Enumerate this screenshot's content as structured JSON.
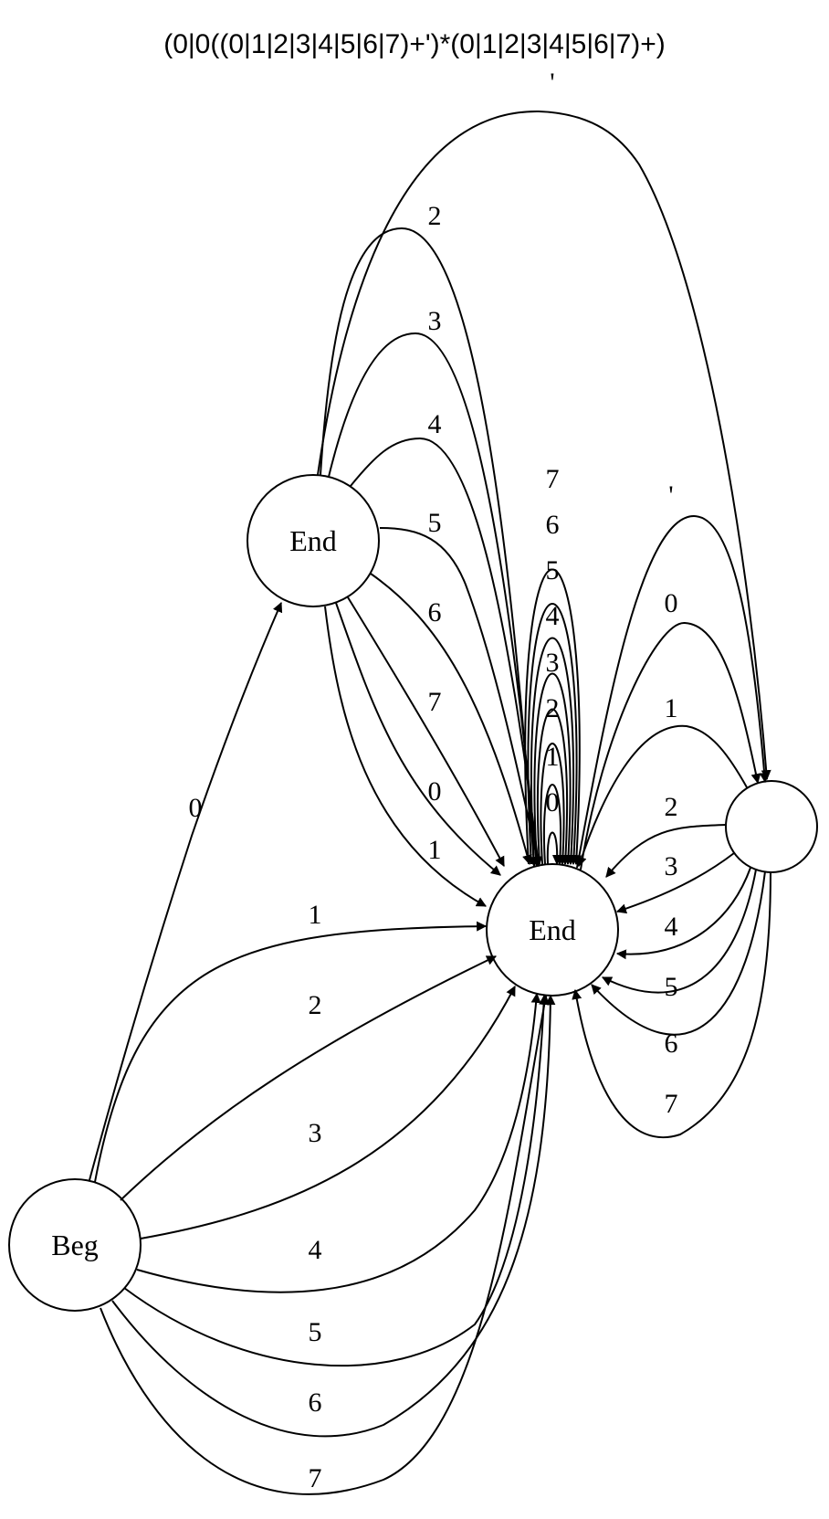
{
  "title": "(0|0((0|1|2|3|4|5|6|7)+')*(0|1|2|3|4|5|6|7)+)",
  "nodes": {
    "beg": {
      "label": "Beg"
    },
    "end1": {
      "label": "End"
    },
    "end2": {
      "label": "End"
    },
    "unnamed": {
      "label": ""
    }
  },
  "edges": [
    {
      "from": "beg",
      "to": "end1",
      "label": "0"
    },
    {
      "from": "beg",
      "to": "end2",
      "label": "1"
    },
    {
      "from": "beg",
      "to": "end2",
      "label": "2"
    },
    {
      "from": "beg",
      "to": "end2",
      "label": "3"
    },
    {
      "from": "beg",
      "to": "end2",
      "label": "4"
    },
    {
      "from": "beg",
      "to": "end2",
      "label": "5"
    },
    {
      "from": "beg",
      "to": "end2",
      "label": "6"
    },
    {
      "from": "beg",
      "to": "end2",
      "label": "7"
    },
    {
      "from": "end1",
      "to": "end2",
      "label": "0"
    },
    {
      "from": "end1",
      "to": "end2",
      "label": "1"
    },
    {
      "from": "end1",
      "to": "end2",
      "label": "2"
    },
    {
      "from": "end1",
      "to": "end2",
      "label": "3"
    },
    {
      "from": "end1",
      "to": "end2",
      "label": "4"
    },
    {
      "from": "end1",
      "to": "end2",
      "label": "5"
    },
    {
      "from": "end1",
      "to": "end2",
      "label": "6"
    },
    {
      "from": "end1",
      "to": "end2",
      "label": "7"
    },
    {
      "from": "end1",
      "to": "unnamed",
      "label": "'"
    },
    {
      "from": "end2",
      "to": "end2",
      "label": "0"
    },
    {
      "from": "end2",
      "to": "end2",
      "label": "1"
    },
    {
      "from": "end2",
      "to": "end2",
      "label": "2"
    },
    {
      "from": "end2",
      "to": "end2",
      "label": "3"
    },
    {
      "from": "end2",
      "to": "end2",
      "label": "4"
    },
    {
      "from": "end2",
      "to": "end2",
      "label": "5"
    },
    {
      "from": "end2",
      "to": "end2",
      "label": "6"
    },
    {
      "from": "end2",
      "to": "end2",
      "label": "7"
    },
    {
      "from": "end2",
      "to": "unnamed",
      "label": "'"
    },
    {
      "from": "unnamed",
      "to": "end2",
      "label": "0"
    },
    {
      "from": "unnamed",
      "to": "end2",
      "label": "1"
    },
    {
      "from": "unnamed",
      "to": "end2",
      "label": "2"
    },
    {
      "from": "unnamed",
      "to": "end2",
      "label": "3"
    },
    {
      "from": "unnamed",
      "to": "end2",
      "label": "4"
    },
    {
      "from": "unnamed",
      "to": "end2",
      "label": "5"
    },
    {
      "from": "unnamed",
      "to": "end2",
      "label": "6"
    },
    {
      "from": "unnamed",
      "to": "end2",
      "label": "7"
    }
  ]
}
